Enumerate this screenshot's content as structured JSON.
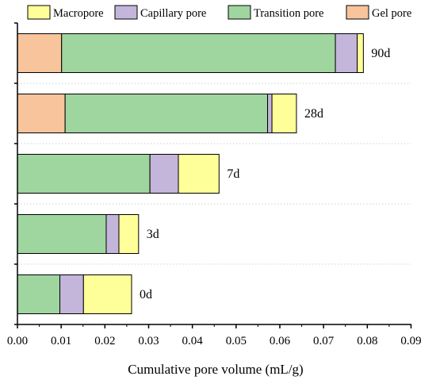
{
  "chart_data": {
    "type": "bar",
    "orientation": "horizontal",
    "stacked": true,
    "xlabel": "Cumulative pore volume (mL/g)",
    "ylabel": "",
    "xlim": [
      0,
      0.09
    ],
    "xticks": [
      "0.00",
      "0.01",
      "0.02",
      "0.03",
      "0.04",
      "0.05",
      "0.06",
      "0.07",
      "0.08",
      "0.09"
    ],
    "grid": "horizontal dotted",
    "legend_position": "top",
    "categories": [
      "90d",
      "28d",
      "7d",
      "3d",
      "0d"
    ],
    "series": [
      {
        "name": "Gel pore",
        "color": "#f8c49c",
        "values": [
          0.0101,
          0.0109,
          0,
          0,
          0
        ]
      },
      {
        "name": "Transition pore",
        "color": "#9fd59f",
        "values": [
          0.0626,
          0.0463,
          0.0303,
          0.0203,
          0.0097
        ]
      },
      {
        "name": "Capillary pore",
        "color": "#c4b5da",
        "values": [
          0.005,
          0.001,
          0.0065,
          0.0029,
          0.0054
        ]
      },
      {
        "name": "Macropore",
        "color": "#ffff99",
        "values": [
          0.0014,
          0.0056,
          0.0093,
          0.0045,
          0.011
        ]
      }
    ],
    "legend_order": [
      "Macropore",
      "Capillary pore",
      "Transition pore",
      "Gel pore"
    ]
  }
}
